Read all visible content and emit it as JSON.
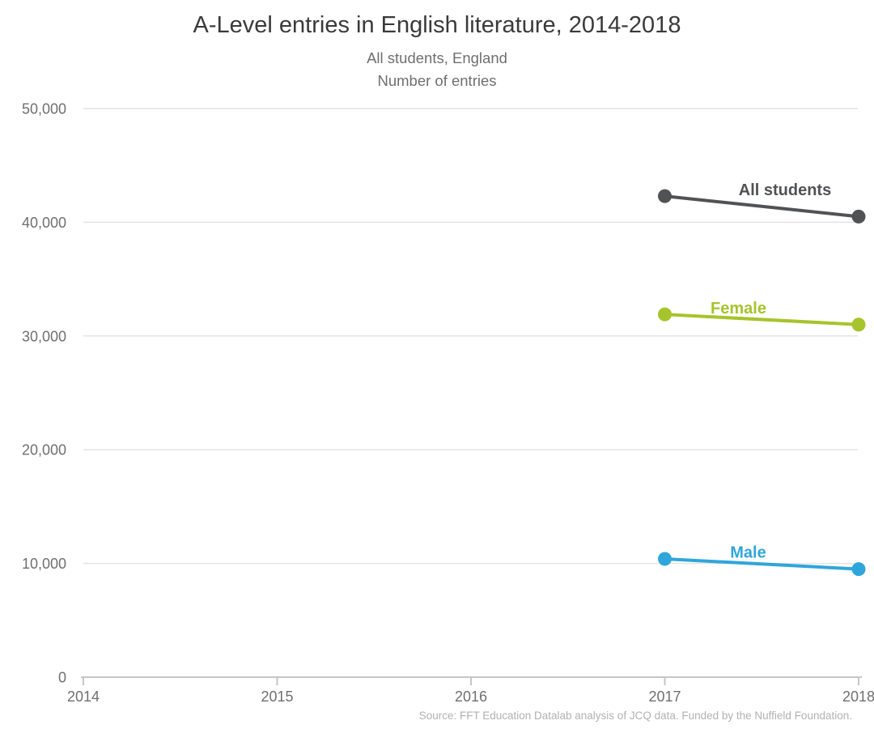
{
  "title": "A-Level entries in English literature, 2014-2018",
  "subtitle": {
    "line1": "All students, England",
    "line2": "Number of entries"
  },
  "source": "Source: FFT Education Datalab analysis of JCQ data. Funded by the Nuffield Foundation.",
  "colors": {
    "background": "#ffffff",
    "gridline": "#e4e4e4",
    "axis_line": "#c6c6c6",
    "tick_label": "#6f6f6f",
    "title": "#3a3a3a",
    "subtitle": "#6f6f6f",
    "source": "#b1b1b1"
  },
  "chart_data": {
    "type": "line",
    "title": "A-Level entries in English literature, 2014-2018",
    "subtitle": [
      "All students, England",
      "Number of entries"
    ],
    "xlabel": "",
    "ylabel": "Number of entries",
    "xlim": [
      2014,
      2018
    ],
    "ylim": [
      0,
      50000
    ],
    "x_axis_ticks": [
      "2014",
      "2015",
      "2016",
      "2017",
      "2018"
    ],
    "x_tick_values": [
      2014,
      2015,
      2016,
      2017,
      2018
    ],
    "y_axis_ticks": [
      "0",
      "10,000",
      "20,000",
      "30,000",
      "40,000",
      "50,000"
    ],
    "y_tick_values": [
      0,
      10000,
      20000,
      30000,
      40000,
      50000
    ],
    "grid": "horizontal-only",
    "legend_position": "inline-series-labels",
    "x": [
      2017,
      2018
    ],
    "series": [
      {
        "name": "All students",
        "values": [
          42300,
          40500
        ],
        "color": "#515254"
      },
      {
        "name": "Female",
        "values": [
          31900,
          31000
        ],
        "color": "#a6c42b"
      },
      {
        "name": "Male",
        "values": [
          10400,
          9500
        ],
        "color": "#2fa6db"
      }
    ]
  }
}
